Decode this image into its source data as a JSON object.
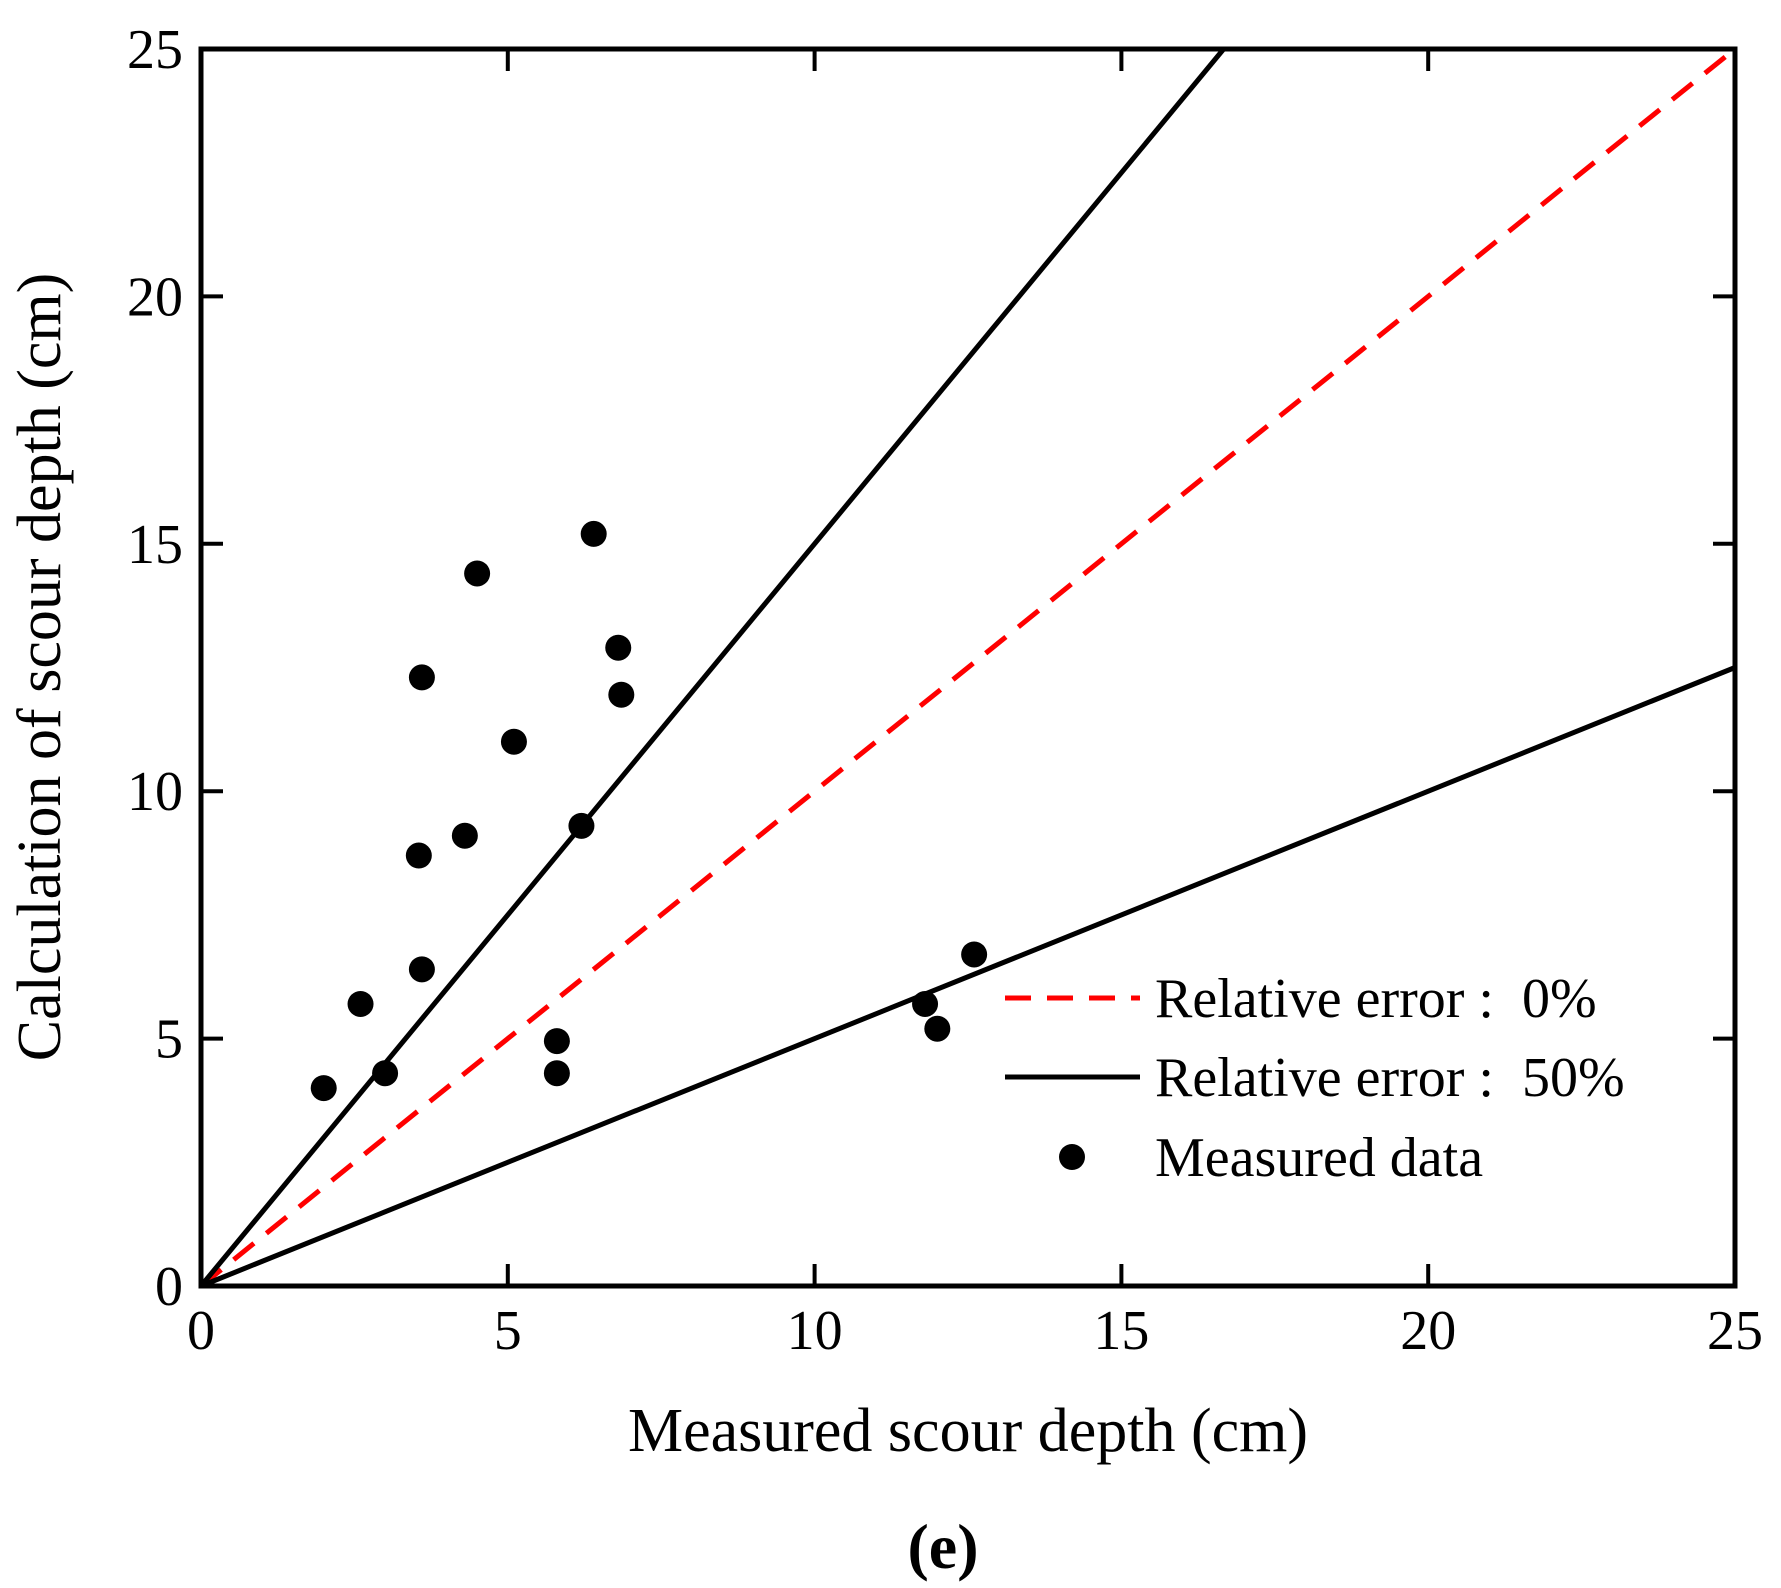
{
  "chart_data": {
    "type": "scatter",
    "panel_label": "(e)",
    "xlabel": "Measured scour depth  (cm)",
    "ylabel": "Calculation of scour depth (cm)",
    "xlim": [
      0,
      25
    ],
    "ylim": [
      0,
      25
    ],
    "xticks": [
      "0",
      "5",
      "10",
      "15",
      "20",
      "25"
    ],
    "yticks": [
      "0",
      "5",
      "10",
      "15",
      "20",
      "25"
    ],
    "grid": false,
    "legend_position": "bottom-right",
    "lines": [
      {
        "name": "Relative error :  0%",
        "slope": 1.0,
        "style": "dashed",
        "color": "#ff0000"
      },
      {
        "name": "Relative error :  50%",
        "slope": 1.5,
        "style": "solid",
        "color": "#000000"
      },
      {
        "name": "",
        "slope": 0.5,
        "style": "solid",
        "color": "#000000"
      }
    ],
    "series": [
      {
        "name": "Measured data",
        "color": "#000000",
        "points": [
          [
            2.0,
            4.0
          ],
          [
            2.6,
            5.7
          ],
          [
            3.0,
            4.3
          ],
          [
            3.55,
            8.7
          ],
          [
            3.6,
            6.4
          ],
          [
            3.6,
            12.3
          ],
          [
            4.3,
            9.1
          ],
          [
            4.5,
            14.4
          ],
          [
            5.1,
            11.0
          ],
          [
            5.8,
            4.95
          ],
          [
            5.8,
            4.3
          ],
          [
            6.2,
            9.3
          ],
          [
            6.4,
            15.2
          ],
          [
            6.8,
            12.9
          ],
          [
            6.85,
            11.95
          ],
          [
            11.8,
            5.7
          ],
          [
            12.0,
            5.2
          ],
          [
            12.6,
            6.7
          ]
        ]
      }
    ]
  }
}
